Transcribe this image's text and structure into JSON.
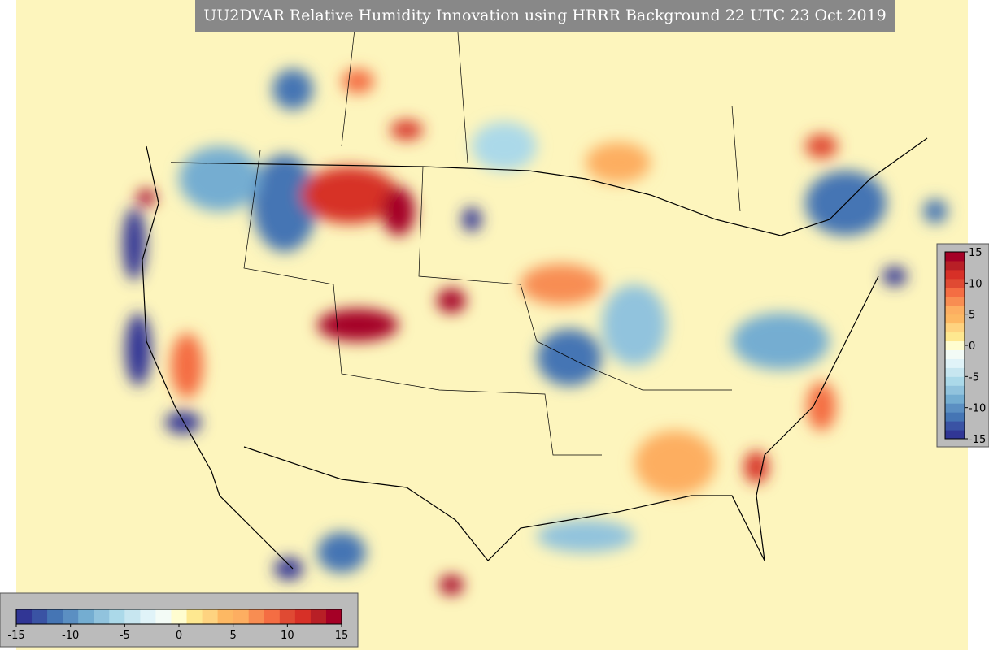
{
  "title": "UU2DVAR Relative Humidity Innovation using HRRR Background 22 UTC 23 Oct 2019",
  "colorbar": {
    "lim": [
      -15,
      15
    ],
    "ticks": [
      -15,
      -10,
      -5,
      0,
      5,
      10,
      15
    ],
    "colors": [
      "#313695",
      "#3a53a4",
      "#4575b4",
      "#5b8fc2",
      "#74add1",
      "#91c3dd",
      "#abd9e9",
      "#c7e6f0",
      "#e0f3f8",
      "#f3fbf6",
      "#fffdd0",
      "#fee890",
      "#fed380",
      "#fdb863",
      "#fdae61",
      "#f88d52",
      "#f46d43",
      "#e04a33",
      "#d73027",
      "#b81f26",
      "#a50026"
    ]
  }
}
